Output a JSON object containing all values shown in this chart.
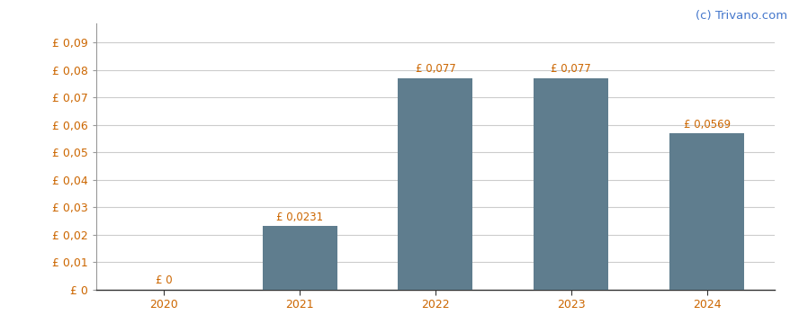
{
  "categories": [
    "2020",
    "2021",
    "2022",
    "2023",
    "2024"
  ],
  "values": [
    0,
    0.0231,
    0.077,
    0.077,
    0.0569
  ],
  "bar_color": "#5f7d8e",
  "labels": [
    "£ 0",
    "£ 0,0231",
    "£ 0,077",
    "£ 0,077",
    "£ 0,0569"
  ],
  "yticks": [
    0,
    0.01,
    0.02,
    0.03,
    0.04,
    0.05,
    0.06,
    0.07,
    0.08,
    0.09
  ],
  "ytick_labels": [
    "£ 0",
    "£ 0,01",
    "£ 0,02",
    "£ 0,03",
    "£ 0,04",
    "£ 0,05",
    "£ 0,06",
    "£ 0,07",
    "£ 0,08",
    "£ 0,09"
  ],
  "ylim": [
    0,
    0.097
  ],
  "background_color": "#ffffff",
  "grid_color": "#cccccc",
  "watermark": "(c) Trivano.com",
  "watermark_color": "#4477cc",
  "text_color": "#cc6600",
  "bar_width": 0.55,
  "label_fontsize": 8.5,
  "tick_fontsize": 9,
  "watermark_fontsize": 9.5
}
